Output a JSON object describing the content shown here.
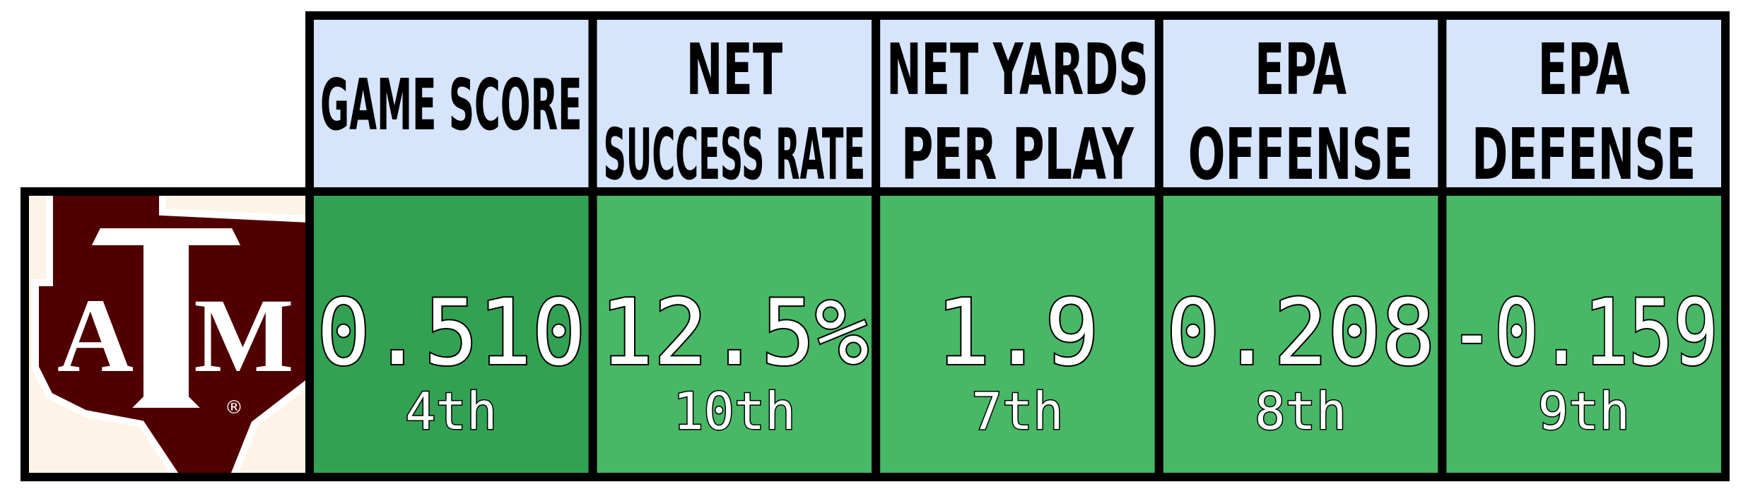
{
  "logo": {
    "letters": [
      "A",
      "M"
    ],
    "mark": "®"
  },
  "columns": [
    {
      "header": [
        "GAME SCORE"
      ],
      "value": "0.510",
      "rank": "4th",
      "color": "#33a153"
    },
    {
      "header": [
        "NET",
        "SUCCESS RATE"
      ],
      "value": "12.5%",
      "rank": "10th",
      "color": "#48b766"
    },
    {
      "header": [
        "NET YARDS",
        "PER PLAY"
      ],
      "value": "1.9",
      "rank": "7th",
      "color": "#48b766"
    },
    {
      "header": [
        "EPA",
        "OFFENSE"
      ],
      "value": "0.208",
      "rank": "8th",
      "color": "#48b766"
    },
    {
      "header": [
        "EPA",
        "DEFENSE"
      ],
      "value": "-0.159",
      "rank": "9th",
      "color": "#48b766"
    }
  ],
  "header_color": "#d6e4fc"
}
